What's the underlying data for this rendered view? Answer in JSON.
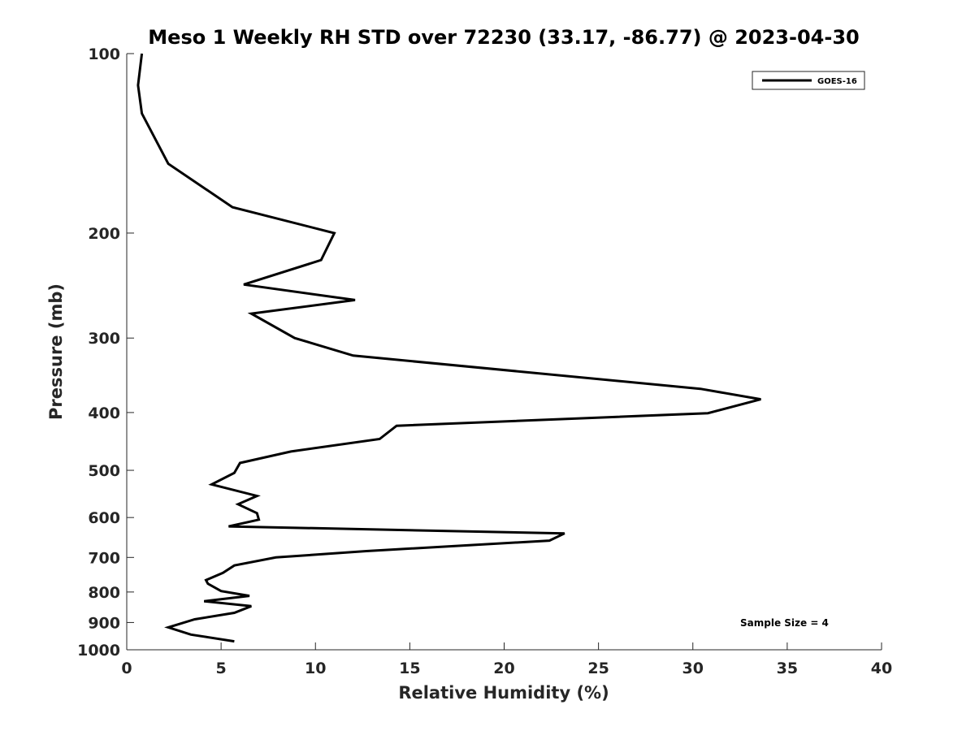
{
  "chart_data": {
    "type": "line",
    "title": "Meso 1 Weekly RH STD over 72230 (33.17, -86.77) @ 2023-04-30",
    "xlabel": "Relative Humidity (%)",
    "ylabel": "Pressure (mb)",
    "xlim": [
      0,
      40
    ],
    "ylim": [
      100,
      1000
    ],
    "yscale": "log",
    "yreversed": true,
    "grid": false,
    "legend_position": "top-right",
    "xticks": [
      0,
      5,
      10,
      15,
      20,
      25,
      30,
      35,
      40
    ],
    "xtick_labels": [
      "0",
      "5",
      "10",
      "15",
      "20",
      "25",
      "30",
      "35",
      "40"
    ],
    "yticks": [
      100,
      200,
      300,
      400,
      500,
      600,
      700,
      800,
      900,
      1000
    ],
    "ytick_labels": [
      "100",
      "200",
      "300",
      "400",
      "500",
      "600",
      "700",
      "800",
      "900",
      "1000"
    ],
    "annotation": "Sample Size = 4",
    "series": [
      {
        "name": "GOES-16",
        "color": "#000000",
        "points": [
          [
            0.8,
            100
          ],
          [
            0.6,
            113
          ],
          [
            0.8,
            126
          ],
          [
            2.2,
            153
          ],
          [
            5.6,
            181
          ],
          [
            11.0,
            200
          ],
          [
            10.3,
            222
          ],
          [
            6.2,
            244
          ],
          [
            12.1,
            259
          ],
          [
            6.6,
            273
          ],
          [
            8.9,
            300
          ],
          [
            12.0,
            321
          ],
          [
            30.4,
            365
          ],
          [
            33.6,
            380
          ],
          [
            30.8,
            401
          ],
          [
            14.3,
            421
          ],
          [
            13.4,
            443
          ],
          [
            8.7,
            465
          ],
          [
            6.0,
            486
          ],
          [
            5.7,
            505
          ],
          [
            4.5,
            528
          ],
          [
            6.9,
            552
          ],
          [
            5.9,
            570
          ],
          [
            6.9,
            590
          ],
          [
            7.0,
            605
          ],
          [
            5.4,
            621
          ],
          [
            23.2,
            638
          ],
          [
            22.4,
            656
          ],
          [
            12.7,
            683
          ],
          [
            7.9,
            700
          ],
          [
            5.7,
            722
          ],
          [
            5.1,
            743
          ],
          [
            4.2,
            764
          ],
          [
            4.3,
            775
          ],
          [
            5.0,
            797
          ],
          [
            6.5,
            812
          ],
          [
            4.1,
            829
          ],
          [
            6.6,
            845
          ],
          [
            5.7,
            867
          ],
          [
            3.6,
            889
          ],
          [
            2.2,
            917
          ],
          [
            3.4,
            943
          ],
          [
            5.7,
            968
          ]
        ]
      }
    ]
  }
}
